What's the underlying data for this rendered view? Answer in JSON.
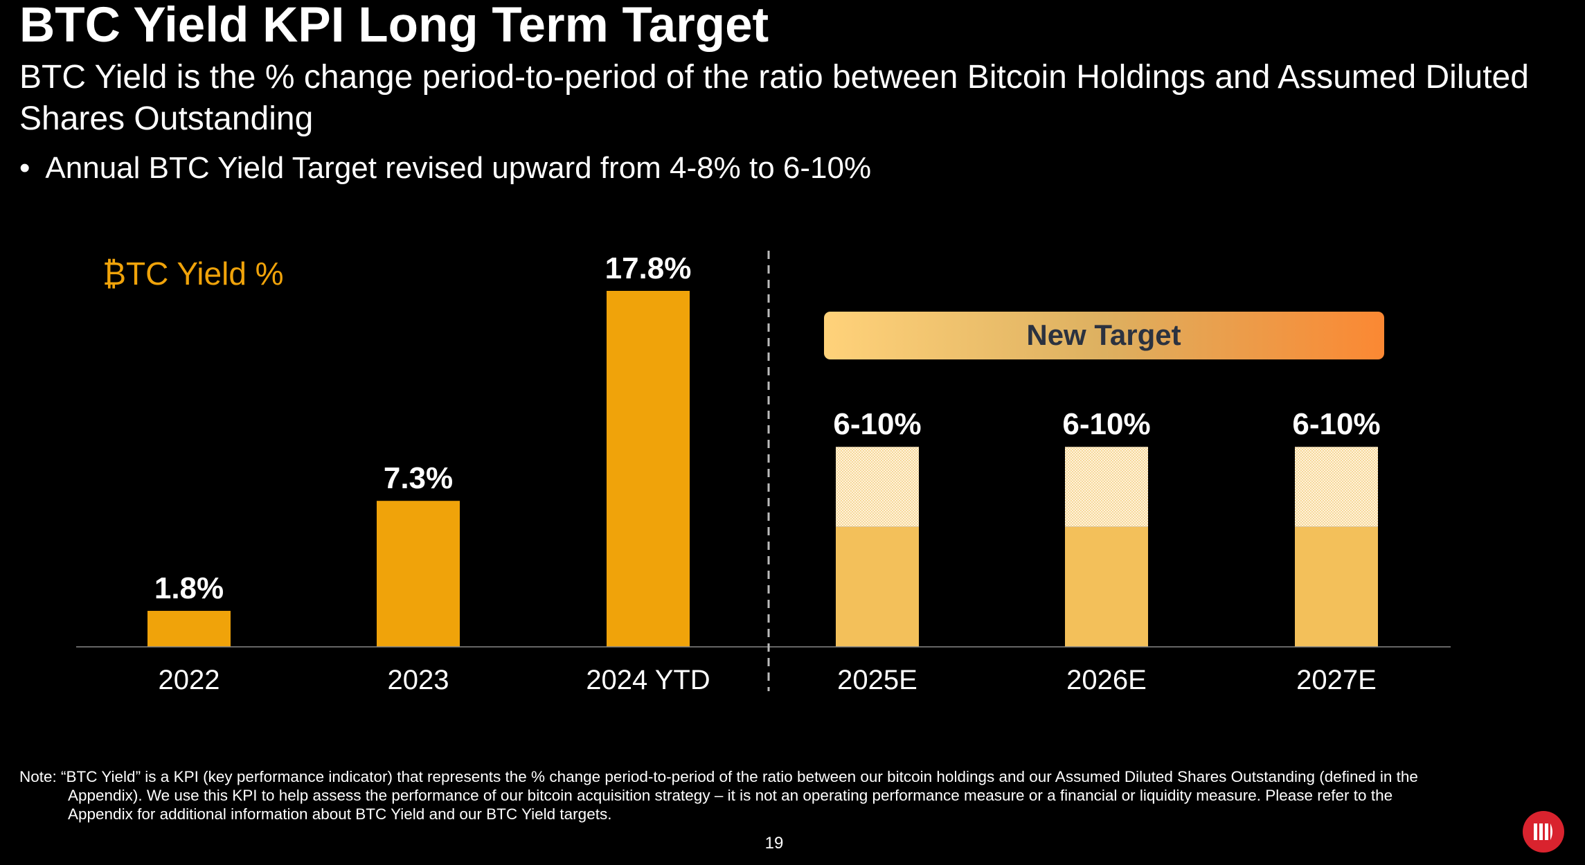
{
  "title": "BTC Yield KPI Long Term Target",
  "subtitle": "BTC Yield is the % change period-to-period of the ratio between Bitcoin Holdings and Assumed Diluted Shares Outstanding",
  "bullet": "Annual BTC Yield Target revised upward from 4-8% to 6-10%",
  "chart_label": "₿TC Yield %",
  "new_target_label": "New Target",
  "note_lines": [
    "Note: “BTC Yield” is a KPI (key performance indicator) that represents the % change period-to-period of the ratio between our bitcoin holdings and our Assumed Diluted Shares Outstanding (defined in the",
    "Appendix). We use this KPI to help assess the performance of our bitcoin acquisition strategy – it is not an operating performance measure or a financial or liquidity measure. Please refer to the",
    "Appendix for additional information about BTC Yield and our BTC Yield targets."
  ],
  "page_number": "19",
  "colors": {
    "actual": "#f0a30a",
    "target_low": "#f3c05a",
    "target_range": "#fbe6bd",
    "banner_start": "#ffd27a",
    "banner_end": "#fb8833",
    "logo": "#d9232e"
  },
  "chart_data": {
    "type": "bar",
    "categories": [
      "2022",
      "2023",
      "2024 YTD",
      "2025E",
      "2026E",
      "2027E"
    ],
    "series": [
      {
        "values": [
          1.8,
          7.3,
          17.8,
          null,
          null,
          null
        ],
        "labels": [
          "1.8%",
          "7.3%",
          "17.8%",
          "",
          "",
          ""
        ]
      },
      {
        "ranges": [
          null,
          null,
          null,
          [
            6,
            10
          ],
          [
            6,
            10
          ],
          [
            6,
            10
          ]
        ],
        "labels": [
          "",
          "",
          "",
          "6-10%",
          "6-10%",
          "6-10%"
        ]
      }
    ],
    "ylim": [
      0,
      18
    ],
    "grid": false,
    "divider_after": "2024 YTD"
  }
}
